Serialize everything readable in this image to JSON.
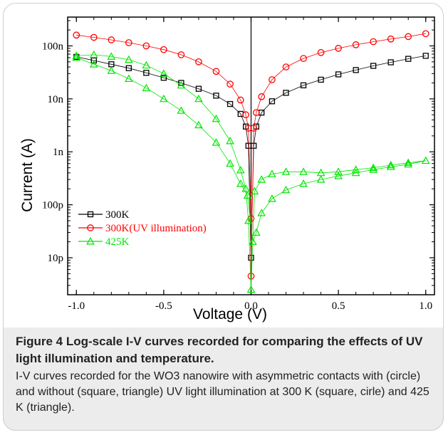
{
  "chart_data": {
    "type": "scatter",
    "xlabel": "Voltage (V)",
    "ylabel": "Current (A)",
    "xlim": [
      -1.05,
      1.05
    ],
    "ylim": [
      2e-12,
      3.5e-07
    ],
    "yscale": "log",
    "x_ticks": [
      -1.0,
      -0.5,
      0.0,
      0.5,
      1.0
    ],
    "x_tick_labels": [
      "-1.0",
      "-0.5",
      "0.0",
      "0.5",
      "1.0"
    ],
    "y_ticks": [
      1e-11,
      1e-10,
      1e-09,
      1e-08,
      1e-07
    ],
    "y_tick_labels": [
      "10p",
      "100p",
      "1n",
      "10n",
      "100n"
    ],
    "legend_position": "bottom-left",
    "grid": false,
    "series": [
      {
        "name": "300K",
        "marker": "square",
        "color": "#000000",
        "points": [
          [
            -1.0,
            6.2e-08
          ],
          [
            -0.9,
            5.3e-08
          ],
          [
            -0.8,
            4.5e-08
          ],
          [
            -0.7,
            3.8e-08
          ],
          [
            -0.6,
            3.1e-08
          ],
          [
            -0.5,
            2.5e-08
          ],
          [
            -0.4,
            2e-08
          ],
          [
            -0.3,
            1.55e-08
          ],
          [
            -0.2,
            1.15e-08
          ],
          [
            -0.12,
            8e-09
          ],
          [
            -0.06,
            5.2e-09
          ],
          [
            -0.03,
            3e-09
          ],
          [
            -0.015,
            1.3e-09
          ],
          [
            0.0,
            1e-11
          ],
          [
            0.015,
            1.3e-09
          ],
          [
            0.03,
            3e-09
          ],
          [
            0.06,
            5.5e-09
          ],
          [
            0.12,
            9e-09
          ],
          [
            0.2,
            1.3e-08
          ],
          [
            0.3,
            1.8e-08
          ],
          [
            0.4,
            2.3e-08
          ],
          [
            0.5,
            2.9e-08
          ],
          [
            0.6,
            3.5e-08
          ],
          [
            0.7,
            4.2e-08
          ],
          [
            0.8,
            4.9e-08
          ],
          [
            0.9,
            5.7e-08
          ],
          [
            1.0,
            6.5e-08
          ]
        ]
      },
      {
        "name": "300K(UV illumination)",
        "marker": "circle",
        "color": "#ff0000",
        "points": [
          [
            -1.0,
            1.6e-07
          ],
          [
            -0.9,
            1.45e-07
          ],
          [
            -0.8,
            1.3e-07
          ],
          [
            -0.7,
            1.15e-07
          ],
          [
            -0.6,
            1e-07
          ],
          [
            -0.5,
            8.5e-08
          ],
          [
            -0.4,
            6.8e-08
          ],
          [
            -0.3,
            5e-08
          ],
          [
            -0.2,
            3.3e-08
          ],
          [
            -0.12,
            1.9e-08
          ],
          [
            -0.06,
            9.5e-09
          ],
          [
            -0.03,
            5e-09
          ],
          [
            -0.015,
            2.8e-09
          ],
          [
            0.0,
            5.5e-11
          ],
          [
            0.0,
            4.5e-12
          ],
          [
            0.015,
            2.8e-09
          ],
          [
            0.03,
            5.5e-09
          ],
          [
            0.06,
            1.1e-08
          ],
          [
            0.12,
            2.3e-08
          ],
          [
            0.2,
            4e-08
          ],
          [
            0.3,
            5.8e-08
          ],
          [
            0.4,
            7.5e-08
          ],
          [
            0.5,
            9e-08
          ],
          [
            0.6,
            1.05e-07
          ],
          [
            0.7,
            1.2e-07
          ],
          [
            0.8,
            1.35e-07
          ],
          [
            0.9,
            1.5e-07
          ],
          [
            1.0,
            1.7e-07
          ]
        ]
      },
      {
        "name": "425K",
        "marker": "triangle",
        "color": "#00e600",
        "points": [
          [
            -1.0,
            6.5e-08
          ],
          [
            -0.9,
            6.8e-08
          ],
          [
            -0.8,
            6.3e-08
          ],
          [
            -0.7,
            5.5e-08
          ],
          [
            -0.6,
            4.3e-08
          ],
          [
            -0.5,
            3e-08
          ],
          [
            -0.4,
            1.8e-08
          ],
          [
            -0.3,
            1e-08
          ],
          [
            -0.2,
            4.2e-09
          ],
          [
            -0.12,
            1.6e-09
          ],
          [
            -0.06,
            4.5e-10
          ],
          [
            -0.03,
            2e-10
          ],
          [
            -0.015,
            5e-11
          ],
          [
            0.0,
            2.5e-12
          ],
          [
            0.02,
            1.8e-10
          ],
          [
            0.06,
            3e-10
          ],
          [
            0.12,
            3.8e-10
          ],
          [
            0.2,
            4.2e-10
          ],
          [
            0.3,
            4.2e-10
          ],
          [
            0.4,
            4e-10
          ],
          [
            0.5,
            4.2e-10
          ],
          [
            0.6,
            4.6e-10
          ],
          [
            0.7,
            5e-10
          ],
          [
            0.8,
            5.6e-10
          ],
          [
            0.9,
            6.2e-10
          ],
          [
            1.0,
            6.8e-10
          ],
          [
            0.9,
            5.8e-10
          ],
          [
            0.8,
            5.2e-10
          ],
          [
            0.7,
            4.6e-10
          ],
          [
            0.6,
            4e-10
          ],
          [
            0.5,
            3.5e-10
          ],
          [
            0.4,
            3e-10
          ],
          [
            0.3,
            2.5e-10
          ],
          [
            0.2,
            1.9e-10
          ],
          [
            0.12,
            1.3e-10
          ],
          [
            0.06,
            7e-11
          ],
          [
            0.03,
            3e-11
          ],
          [
            0.01,
            2e-11
          ],
          [
            -0.02,
            1.5e-10
          ],
          [
            -0.06,
            2.5e-10
          ],
          [
            -0.12,
            6e-10
          ],
          [
            -0.2,
            1.5e-09
          ],
          [
            -0.3,
            3.2e-09
          ],
          [
            -0.4,
            6e-09
          ],
          [
            -0.5,
            1e-08
          ],
          [
            -0.6,
            1.6e-08
          ],
          [
            -0.7,
            2.4e-08
          ],
          [
            -0.8,
            3.4e-08
          ],
          [
            -0.9,
            4.5e-08
          ],
          [
            -1.0,
            6e-08
          ]
        ]
      }
    ]
  },
  "caption": {
    "bold": "Figure 4 Log-scale I-V curves recorded for comparing the effects of UV light illumination and temperature.",
    "body": "I-V curves recorded for the WO3 nanowire with asymmetric contacts with (circle) and without (square, triangle) UV light illumination at 300 K (square, cirle) and 425 K (triangle)."
  }
}
